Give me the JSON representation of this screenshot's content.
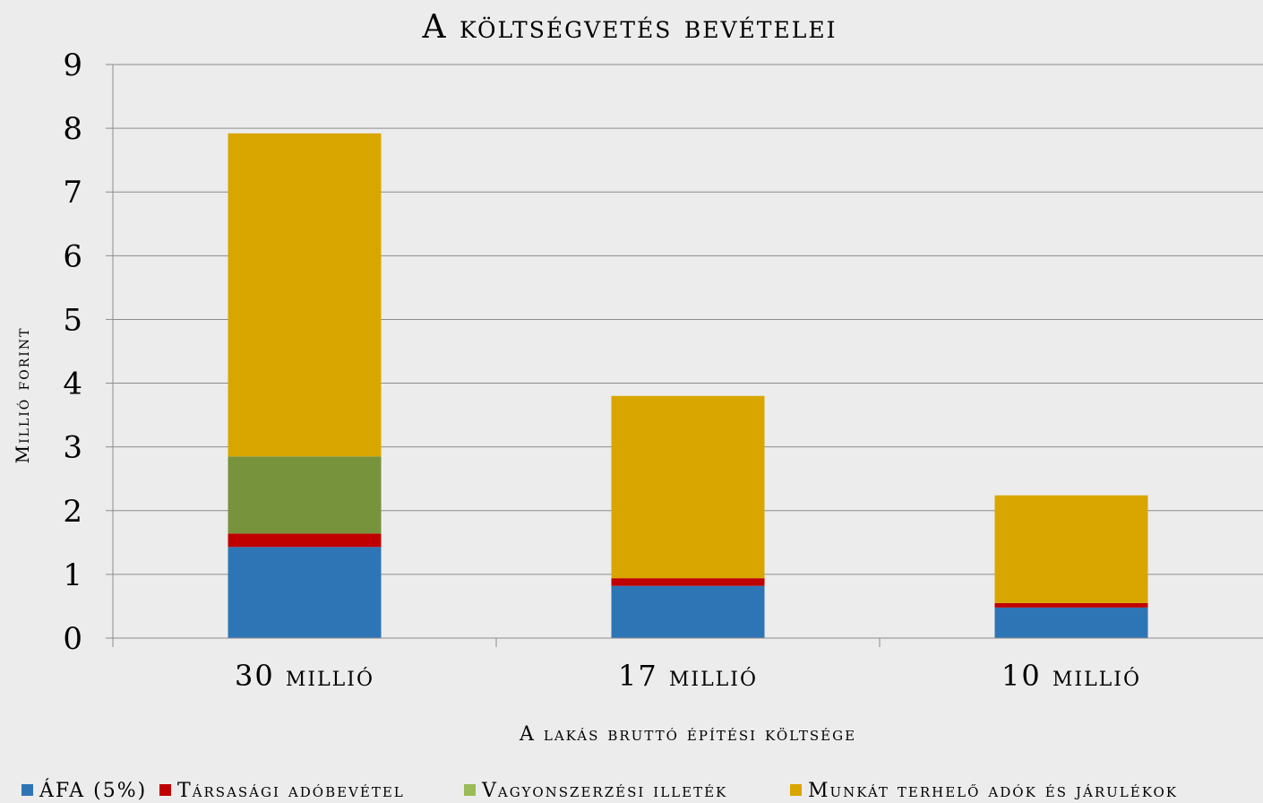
{
  "chart_data": {
    "type": "bar",
    "stacked": true,
    "title": "A költségvetés bevételei",
    "xlabel": "A lakás bruttó építési költsége",
    "ylabel": "Millió forint",
    "categories": [
      "30 millió",
      "17 millió",
      "10 millió"
    ],
    "ylim": [
      0,
      9
    ],
    "yticks": [
      0,
      1,
      2,
      3,
      4,
      5,
      6,
      7,
      8,
      9
    ],
    "grid": true,
    "legend_position": "bottom",
    "series": [
      {
        "name": "ÁFA (5%)",
        "color": "#2e75b6",
        "values": [
          1.43,
          0.82,
          0.48
        ]
      },
      {
        "name": "Társasági adóbevétel",
        "color": "#c00000",
        "values": [
          0.21,
          0.12,
          0.07
        ]
      },
      {
        "name": "Vagyonszerzési illeték",
        "color": "#77933c",
        "values": [
          1.21,
          0.0,
          0.0
        ]
      },
      {
        "name": "Munkát terhelő adók és járulékok",
        "color": "#d9a600",
        "values": [
          5.07,
          2.86,
          1.69
        ]
      }
    ],
    "legend_swatch_colors": [
      "#2e75b6",
      "#c00000",
      "#9bbb59",
      "#d9a600"
    ]
  }
}
